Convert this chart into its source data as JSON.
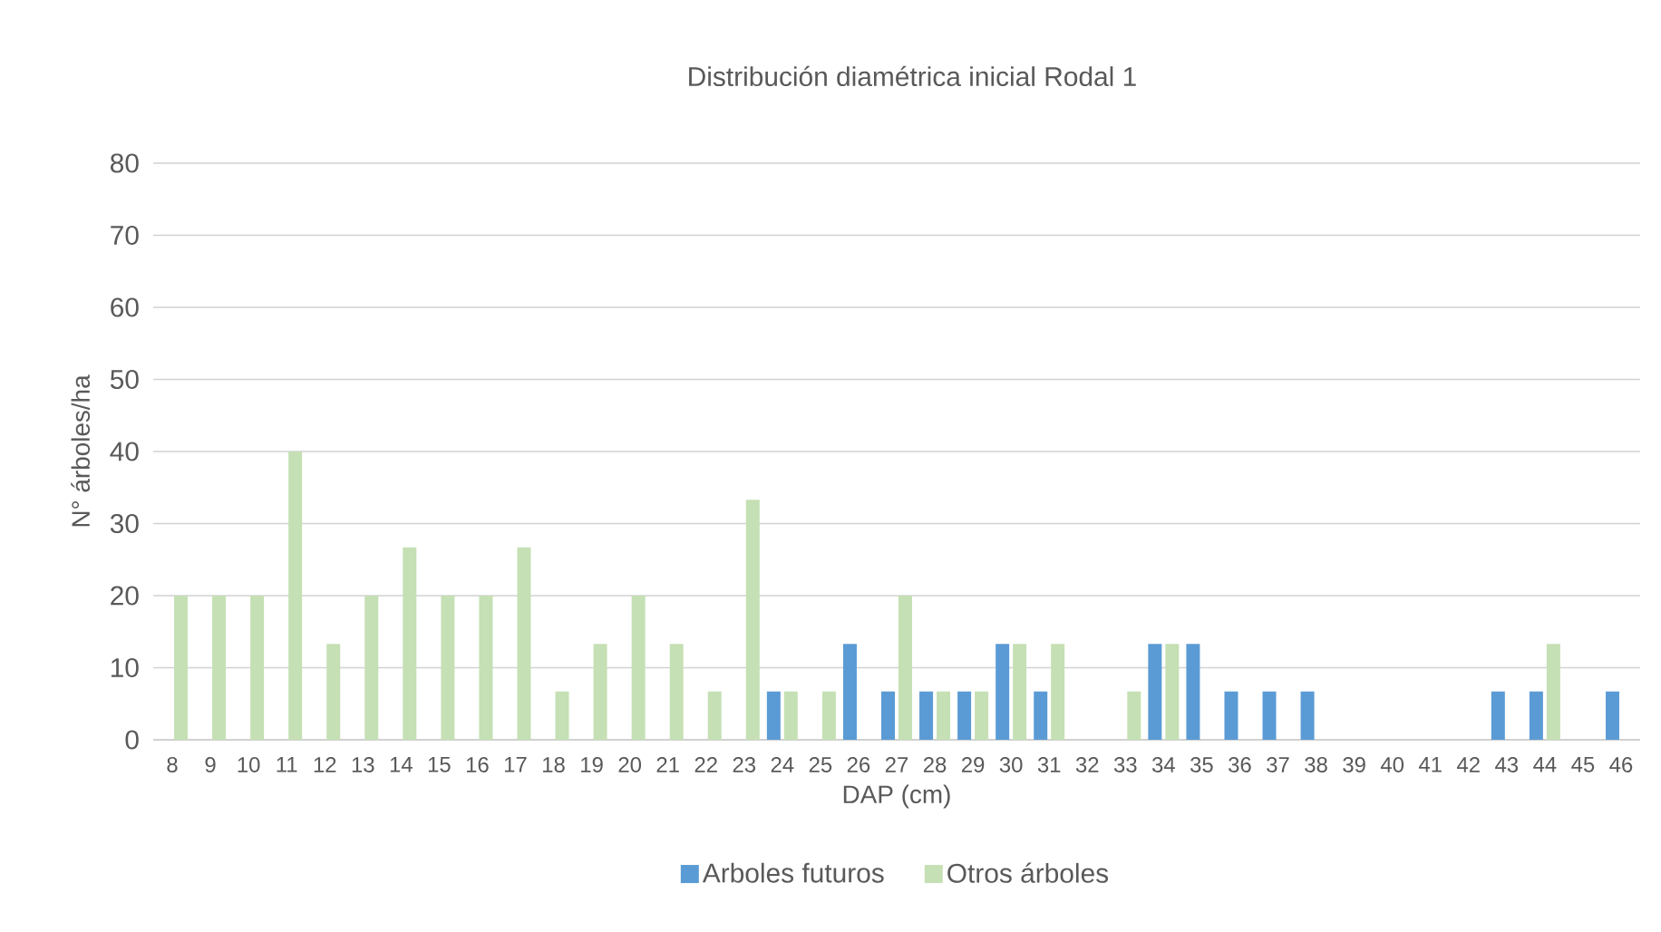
{
  "chart_data": {
    "type": "bar",
    "title": "Distribución diamétrica inicial Rodal 1",
    "xlabel": "DAP (cm)",
    "ylabel": "N° árboles/ha",
    "categories": [
      "8",
      "9",
      "10",
      "11",
      "12",
      "13",
      "14",
      "15",
      "16",
      "17",
      "18",
      "19",
      "20",
      "21",
      "22",
      "23",
      "24",
      "25",
      "26",
      "27",
      "28",
      "29",
      "30",
      "31",
      "32",
      "33",
      "34",
      "35",
      "36",
      "37",
      "38",
      "39",
      "40",
      "41",
      "42",
      "43",
      "44",
      "45",
      "46"
    ],
    "series": [
      {
        "name": "Arboles futuros",
        "color": "#5b9bd5",
        "values": [
          0,
          0,
          0,
          0,
          0,
          0,
          0,
          0,
          0,
          0,
          0,
          0,
          0,
          0,
          0,
          0,
          6.7,
          0,
          13.3,
          6.7,
          6.7,
          6.7,
          13.3,
          6.7,
          0,
          0,
          13.3,
          13.3,
          6.7,
          6.7,
          6.7,
          0,
          0,
          0,
          0,
          6.7,
          6.7,
          0,
          6.7
        ]
      },
      {
        "name": "Otros árboles",
        "color": "#c5e0b4",
        "values": [
          20,
          20,
          20,
          40,
          13.3,
          20,
          26.7,
          20,
          20,
          26.7,
          6.7,
          13.3,
          20,
          13.3,
          6.7,
          33.3,
          6.7,
          6.7,
          0,
          20,
          6.7,
          6.7,
          13.3,
          13.3,
          0,
          6.7,
          13.3,
          0,
          0,
          0,
          0,
          0,
          0,
          0,
          0,
          0,
          13.3,
          0,
          0
        ]
      }
    ],
    "ylim": [
      0,
      80
    ],
    "yticks": [
      0,
      10,
      20,
      30,
      40,
      50,
      60,
      70,
      80
    ],
    "grid": "y",
    "legend": "bottom"
  }
}
